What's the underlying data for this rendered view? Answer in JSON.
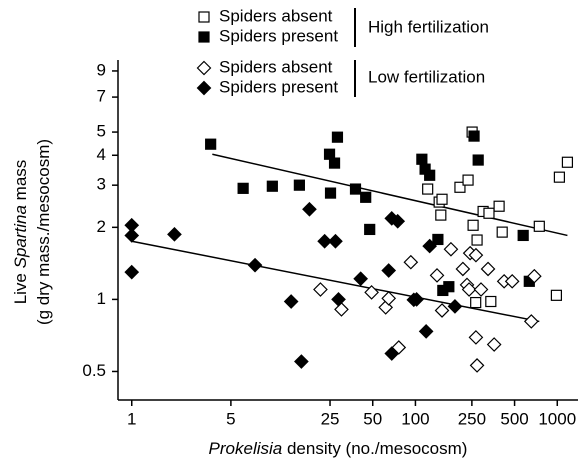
{
  "chart_data": {
    "type": "scatter",
    "x_label": [
      {
        "text": "Prokelisia",
        "italic": true
      },
      {
        "text": " density (no./mesocosm)"
      }
    ],
    "y_label": [
      [
        {
          "text": "Live "
        },
        {
          "text": "Spartina",
          "italic": true
        },
        {
          "text": " mass"
        }
      ],
      [
        {
          "text": "(g dry mass./mesocosm)"
        }
      ]
    ],
    "log_x": true,
    "log_y": true,
    "xlim": [
      0.8,
      1400
    ],
    "ylim": [
      0.38,
      10
    ],
    "xticks": [
      1,
      5,
      25,
      50,
      100,
      250,
      500,
      1000
    ],
    "yticks": [
      0.5,
      1,
      2,
      3,
      4,
      5,
      7,
      9
    ],
    "legend_groups": [
      "High fertilization",
      "Low fertilization"
    ],
    "series": [
      {
        "name": "Spiders absent",
        "marker": "square",
        "filled": false,
        "color": "#000000",
        "x": [
          251,
          122,
          147,
          151,
          154,
          206,
          235,
          255,
          272,
          300,
          330,
          389,
          409,
          747,
          1035,
          1179,
          986,
          266,
          340
        ],
        "values": [
          5.0,
          2.89,
          2.55,
          2.25,
          2.62,
          2.94,
          3.15,
          2.04,
          1.77,
          2.33,
          2.29,
          2.45,
          1.91,
          2.02,
          3.24,
          3.74,
          1.04,
          0.97,
          0.98
        ]
      },
      {
        "name": "Spiders present",
        "marker": "square",
        "filled": true,
        "color": "#000000",
        "x": [
          3.6,
          6.1,
          9.8,
          15.2,
          24.8,
          26.9,
          28.2,
          25.2,
          37.8,
          44.6,
          47.6,
          111,
          117,
          126,
          144,
          156,
          172,
          259,
          277,
          575,
          635
        ],
        "values": [
          4.45,
          2.91,
          2.97,
          3.0,
          4.04,
          3.71,
          4.76,
          2.78,
          2.89,
          2.67,
          1.96,
          3.85,
          3.5,
          3.3,
          1.78,
          1.09,
          1.13,
          4.81,
          3.82,
          1.85,
          1.19
        ]
      },
      {
        "name": "Spiders absent",
        "marker": "diamond",
        "filled": false,
        "color": "#000000",
        "x": [
          21.4,
          30.1,
          49.1,
          61.7,
          64.8,
          76.3,
          92.8,
          154,
          142,
          178,
          216,
          231,
          243,
          267,
          239,
          267,
          290,
          359,
          325,
          422,
          481,
          656,
          689,
          272
        ],
        "values": [
          1.1,
          0.908,
          1.07,
          0.926,
          1.01,
          0.63,
          1.43,
          0.899,
          1.26,
          1.62,
          1.34,
          1.15,
          1.56,
          1.53,
          1.1,
          0.694,
          1.1,
          0.648,
          1.34,
          1.19,
          1.19,
          0.809,
          1.25,
          0.53
        ]
      },
      {
        "name": "Spiders present",
        "marker": "diamond",
        "filled": true,
        "color": "#000000",
        "x": [
          1,
          1,
          1,
          2,
          7.4,
          13.3,
          17.9,
          22.9,
          27.3,
          28.7,
          15.7,
          41.1,
          64.8,
          68.1,
          75,
          97.4,
          102,
          68.1,
          119,
          126,
          190
        ],
        "values": [
          2.04,
          1.85,
          1.3,
          1.87,
          1.39,
          0.98,
          2.38,
          1.75,
          1.75,
          1.0,
          0.55,
          1.22,
          1.32,
          2.18,
          2.12,
          0.996,
          1.0,
          0.594,
          0.735,
          1.67,
          0.935
        ]
      }
    ],
    "trend_lines": [
      {
        "x": [
          3.7,
          1179
        ],
        "values": [
          4.04,
          1.85
        ]
      },
      {
        "x": [
          1,
          747
        ],
        "values": [
          1.75,
          0.809
        ]
      }
    ]
  }
}
